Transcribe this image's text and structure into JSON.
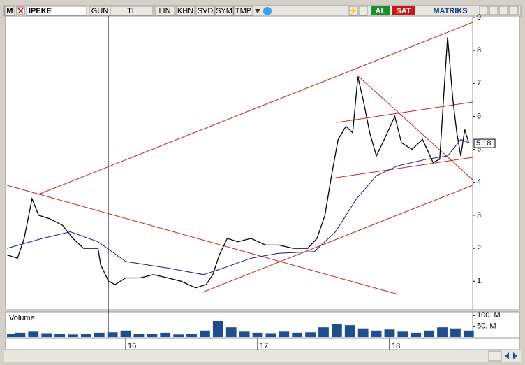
{
  "toolbar": {
    "menu": "M",
    "symbol": "IPEKE",
    "buttons": [
      "GUN",
      "TL",
      "LIN",
      "KHN",
      "SVD",
      "SYM",
      "TMP"
    ],
    "buy": "AL",
    "sell": "SAT",
    "brand": "MATRIKS"
  },
  "chart_data": [
    {
      "type": "line",
      "xlim": [
        15.1,
        18.63
      ],
      "xticks": [
        16,
        17,
        18
      ],
      "ylim": [
        0.2,
        9.04
      ],
      "yticks": [
        {
          "value": 1,
          "label": "1."
        },
        {
          "value": 2,
          "label": "2."
        },
        {
          "value": 3,
          "label": "3."
        },
        {
          "value": 4,
          "label": "4."
        },
        {
          "value": 5,
          "label": "5."
        },
        {
          "value": 6,
          "label": "6."
        },
        {
          "value": 7,
          "label": "7."
        },
        {
          "value": 8,
          "label": "8."
        },
        {
          "value": 9,
          "label": "9."
        }
      ],
      "last_value": 5.18,
      "series": [
        {
          "color": "#000000",
          "x": [
            15.1,
            15.18,
            15.23,
            15.29,
            15.34,
            15.42,
            15.52,
            15.6,
            15.68,
            15.79,
            15.81,
            15.87,
            15.92,
            16.0,
            16.11,
            16.21,
            16.32,
            16.42,
            16.53,
            16.61,
            16.66,
            16.71,
            16.77,
            16.85,
            16.95,
            17.06,
            17.16,
            17.27,
            17.38,
            17.45,
            17.51,
            17.56,
            17.61,
            17.67,
            17.72,
            17.76,
            17.8,
            17.85,
            17.9,
            17.96,
            18.04,
            18.09,
            18.17,
            18.25,
            18.33,
            18.38,
            18.42,
            18.44,
            18.48,
            18.51,
            18.54,
            18.57,
            18.6
          ],
          "values": [
            1.8,
            1.7,
            2.3,
            3.5,
            3.0,
            2.9,
            2.7,
            2.3,
            2.0,
            2.0,
            1.5,
            1.0,
            0.9,
            1.1,
            1.1,
            1.2,
            1.1,
            1.0,
            0.8,
            0.9,
            1.2,
            1.8,
            2.3,
            2.2,
            2.3,
            2.1,
            2.1,
            2.0,
            2.0,
            2.3,
            3.0,
            4.2,
            5.3,
            5.7,
            5.5,
            7.2,
            6.5,
            5.5,
            4.8,
            5.3,
            6.0,
            5.2,
            5.0,
            5.3,
            4.6,
            4.7,
            7.2,
            8.4,
            6.5,
            5.5,
            4.8,
            5.6,
            5.2
          ]
        },
        {
          "color": "#1a1a8c",
          "x": [
            15.1,
            15.37,
            15.58,
            15.79,
            16.0,
            16.32,
            16.59,
            16.74,
            16.95,
            17.16,
            17.43,
            17.59,
            17.75,
            17.9,
            18.06,
            18.28,
            18.44,
            18.54,
            18.6
          ],
          "values": [
            2.0,
            2.3,
            2.5,
            2.2,
            1.6,
            1.4,
            1.2,
            1.4,
            1.7,
            1.85,
            1.9,
            2.5,
            3.5,
            4.2,
            4.5,
            4.7,
            4.8,
            5.3,
            5.2
          ]
        }
      ]
    },
    {
      "type": "bar",
      "title": "Volume",
      "color": "#1f4e8c",
      "xlim": [
        15.1,
        18.63
      ],
      "ylim": [
        0,
        114
      ],
      "yticks": [
        {
          "value": 100,
          "label": "100. M"
        },
        {
          "value": 50,
          "label": "50. M"
        }
      ],
      "x": [
        15.1,
        15.2,
        15.3,
        15.4,
        15.5,
        15.6,
        15.7,
        15.8,
        15.9,
        16.0,
        16.1,
        16.2,
        16.3,
        16.4,
        16.5,
        16.6,
        16.7,
        16.8,
        16.9,
        17.0,
        17.1,
        17.2,
        17.3,
        17.4,
        17.5,
        17.6,
        17.7,
        17.8,
        17.9,
        18.0,
        18.1,
        18.2,
        18.3,
        18.4,
        18.5,
        18.6
      ],
      "values": [
        15,
        20,
        25,
        18,
        15,
        12,
        14,
        20,
        22,
        30,
        15,
        14,
        20,
        12,
        15,
        30,
        75,
        45,
        25,
        20,
        18,
        25,
        20,
        22,
        45,
        60,
        55,
        40,
        30,
        35,
        25,
        20,
        30,
        45,
        40,
        30
      ]
    }
  ]
}
